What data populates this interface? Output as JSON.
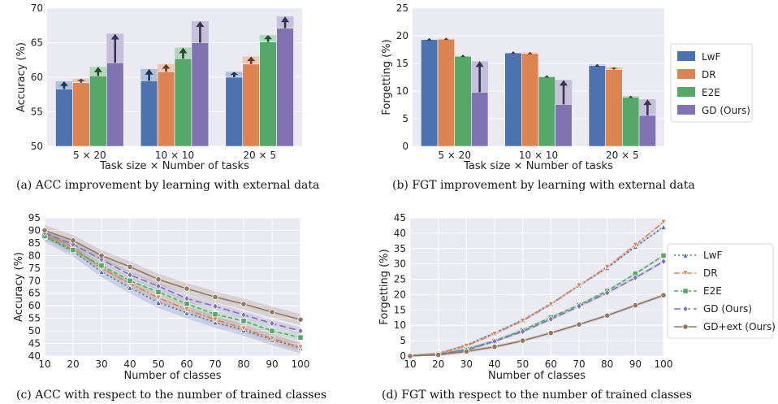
{
  "chart_data": [
    {
      "id": "a",
      "type": "bar",
      "caption": "(a)  ACC improvement by learning with external data",
      "xlabel": "Task size × Number of tasks",
      "ylabel": "Accuracy (%)",
      "categories": [
        "5 × 20",
        "10 × 10",
        "20 × 5"
      ],
      "ylim": [
        50,
        70
      ],
      "yticks": [
        50,
        55,
        60,
        65,
        70
      ],
      "grid": true,
      "series": [
        {
          "name": "LwF",
          "color": "#4c72b0",
          "values": [
            58.3,
            59.5,
            60.0
          ],
          "improved": [
            59.4,
            61.2,
            60.8
          ]
        },
        {
          "name": "DR",
          "color": "#dd8452",
          "values": [
            59.2,
            60.8,
            61.9
          ],
          "improved": [
            59.8,
            61.9,
            63.0
          ]
        },
        {
          "name": "E2E",
          "color": "#55a868",
          "values": [
            60.2,
            62.7,
            65.1
          ],
          "improved": [
            61.5,
            64.3,
            66.1
          ]
        },
        {
          "name": "GD (Ours)",
          "color": "#8172b2",
          "values": [
            62.1,
            65.0,
            67.1
          ],
          "improved": [
            66.3,
            68.1,
            68.8
          ]
        }
      ]
    },
    {
      "id": "b",
      "type": "bar",
      "caption": "(b)  FGT improvement by learning with external data",
      "xlabel": "Task size × Number of tasks",
      "ylabel": "Forgetting (%)",
      "categories": [
        "5 × 20",
        "10 × 10",
        "20 × 5"
      ],
      "ylim": [
        0,
        25
      ],
      "yticks": [
        0,
        5,
        10,
        15,
        20,
        25
      ],
      "grid": true,
      "legend": "right",
      "series": [
        {
          "name": "LwF",
          "color": "#4c72b0",
          "values": [
            19.3,
            16.9,
            14.6
          ],
          "improved": [
            19.4,
            16.9,
            14.8
          ]
        },
        {
          "name": "DR",
          "color": "#dd8452",
          "values": [
            19.4,
            16.8,
            13.9
          ],
          "improved": [
            19.5,
            17.0,
            14.3
          ]
        },
        {
          "name": "E2E",
          "color": "#55a868",
          "values": [
            16.3,
            12.6,
            8.9
          ],
          "improved": [
            16.4,
            12.6,
            9.1
          ]
        },
        {
          "name": "GD (Ours)",
          "color": "#8172b2",
          "values": [
            9.8,
            7.6,
            5.6
          ],
          "improved": [
            15.4,
            12.0,
            8.5
          ]
        }
      ]
    },
    {
      "id": "c",
      "type": "line",
      "caption": "(c)  ACC with respect to the number of trained classes",
      "xlabel": "Number of classes",
      "ylabel": "Accuracy (%)",
      "x": [
        10,
        20,
        30,
        40,
        50,
        60,
        70,
        80,
        90,
        100
      ],
      "xlim": [
        10,
        100
      ],
      "ylim": [
        40,
        95
      ],
      "yticks": [
        40,
        45,
        50,
        55,
        60,
        65,
        70,
        75,
        80,
        85,
        90,
        95
      ],
      "grid": true,
      "series": [
        {
          "name": "LwF",
          "color": "#4c72b0",
          "dash": "2,3",
          "marker": "triangle",
          "values": [
            87.5,
            81.8,
            73.5,
            67.2,
            61.3,
            57.2,
            53.4,
            50.3,
            46.5,
            43.2
          ],
          "band": 2.2
        },
        {
          "name": "DR",
          "color": "#dd8452",
          "dash": "7,3,2,3",
          "marker": "tri-down",
          "values": [
            88.5,
            83.0,
            75.0,
            68.8,
            63.2,
            58.5,
            54.5,
            51.0,
            47.0,
            43.5
          ],
          "band": 1.6
        },
        {
          "name": "E2E",
          "color": "#55a868",
          "dash": "5,3",
          "marker": "square",
          "values": [
            87.8,
            82.2,
            76.0,
            70.0,
            65.5,
            60.8,
            56.6,
            54.0,
            50.0,
            47.4
          ],
          "band": 1.4
        },
        {
          "name": "GD (Ours)",
          "color": "#8172b2",
          "dash": "8,4",
          "marker": "diamond",
          "values": [
            89.0,
            84.5,
            78.4,
            72.3,
            67.8,
            62.9,
            59.8,
            56.4,
            53.0,
            50.0
          ],
          "band": 1.4
        },
        {
          "name": "GD+ext (Ours)",
          "color": "#937860",
          "dash": "",
          "marker": "circle",
          "values": [
            90.0,
            86.0,
            80.0,
            75.5,
            70.5,
            66.8,
            63.5,
            60.7,
            57.5,
            54.5
          ],
          "band": 2.2
        }
      ]
    },
    {
      "id": "d",
      "type": "line",
      "caption": "(d)  FGT with respect to the number of trained classes",
      "xlabel": "Number of classes",
      "ylabel": "Forgetting (%)",
      "x": [
        10,
        20,
        30,
        40,
        50,
        60,
        70,
        80,
        90,
        100
      ],
      "xlim": [
        10,
        100
      ],
      "ylim": [
        0,
        45
      ],
      "yticks": [
        0,
        5,
        10,
        15,
        20,
        25,
        30,
        35,
        40,
        45
      ],
      "grid": true,
      "legend": "right",
      "series": [
        {
          "name": "LwF",
          "color": "#4c72b0",
          "dash": "2,3",
          "marker": "triangle",
          "values": [
            0,
            0.8,
            3.5,
            7.5,
            11.7,
            17.0,
            23.0,
            28.7,
            35.6,
            42.0
          ],
          "band": 0.4
        },
        {
          "name": "DR",
          "color": "#dd8452",
          "dash": "7,3,2,3",
          "marker": "tri-down",
          "values": [
            0,
            0.8,
            3.3,
            7.2,
            11.5,
            16.8,
            23.0,
            29.0,
            36.2,
            43.6
          ],
          "band": 0.4
        },
        {
          "name": "E2E",
          "color": "#55a868",
          "dash": "5,3",
          "marker": "square",
          "values": [
            0,
            0.5,
            2.2,
            4.9,
            8.4,
            12.6,
            16.6,
            21.2,
            26.8,
            32.7
          ],
          "band": 0.5
        },
        {
          "name": "GD (Ours)",
          "color": "#8172b2",
          "dash": "8,4",
          "marker": "diamond",
          "values": [
            0,
            0.5,
            2.0,
            4.8,
            8.0,
            12.0,
            16.2,
            20.6,
            25.5,
            30.8
          ],
          "band": 0.5
        },
        {
          "name": "GD+ext (Ours)",
          "color": "#937860",
          "dash": "",
          "marker": "circle",
          "values": [
            0,
            0.4,
            1.5,
            3.0,
            5.0,
            7.5,
            10.3,
            13.2,
            16.5,
            19.8
          ],
          "band": 0.5
        }
      ]
    }
  ]
}
